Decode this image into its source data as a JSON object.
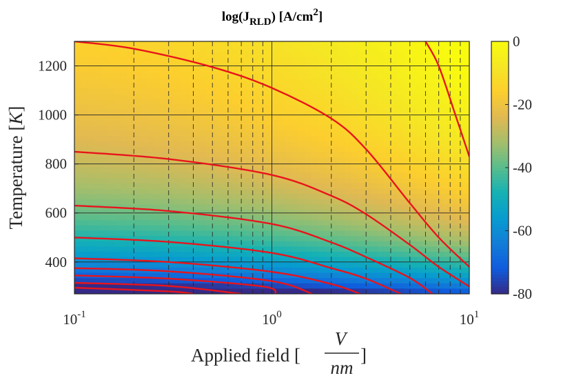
{
  "chart_data": {
    "type": "heatmap",
    "title": {
      "prefix": "log(J",
      "subscript": "RLD",
      "suffix": ") [A/cm",
      "superscript": "2",
      "end": "]"
    },
    "xlabel": {
      "text": "Applied field [",
      "frac_num": "V",
      "frac_den": "nm",
      "end": "]"
    },
    "ylabel": {
      "text": "Temperature [",
      "unit": "K",
      "end": "]"
    },
    "x_scale": "log",
    "xlim": [
      0.1,
      10
    ],
    "ylim": [
      270,
      1300
    ],
    "x_ticks": [
      {
        "value": 0.1,
        "base": "10",
        "exp": "-1"
      },
      {
        "value": 1,
        "base": "10",
        "exp": "0"
      },
      {
        "value": 10,
        "base": "10",
        "exp": "1"
      }
    ],
    "y_ticks": [
      {
        "value": 400,
        "label": "400"
      },
      {
        "value": 600,
        "label": "600"
      },
      {
        "value": 800,
        "label": "800"
      },
      {
        "value": 1000,
        "label": "1000"
      },
      {
        "value": 1200,
        "label": "1200"
      }
    ],
    "colorbar": {
      "range": [
        -80,
        0
      ],
      "ticks": [
        {
          "value": 0,
          "label": "0"
        },
        {
          "value": -20,
          "label": "-20"
        },
        {
          "value": -40,
          "label": "-40"
        },
        {
          "value": -60,
          "label": "-60"
        },
        {
          "value": -80,
          "label": "-80"
        }
      ],
      "colormap": "parula"
    },
    "grid": true,
    "minor_grid_style": "dashed",
    "contour_color": "#e8141c",
    "contour_lines": [
      {
        "points": [
          [
            0.1,
            1300
          ],
          [
            0.2,
            1270
          ],
          [
            0.5,
            1195
          ],
          [
            1,
            1110
          ],
          [
            2,
            985
          ],
          [
            3,
            860
          ],
          [
            5,
            640
          ],
          [
            7,
            500
          ],
          [
            10,
            380
          ]
        ]
      },
      {
        "points": [
          [
            0.1,
            850
          ],
          [
            0.3,
            820
          ],
          [
            1,
            755
          ],
          [
            2,
            670
          ],
          [
            3,
            595
          ],
          [
            5,
            470
          ],
          [
            7,
            380
          ],
          [
            10,
            300
          ]
        ]
      },
      {
        "points": [
          [
            0.1,
            630
          ],
          [
            0.3,
            608
          ],
          [
            1,
            555
          ],
          [
            2,
            480
          ],
          [
            3,
            420
          ],
          [
            5,
            335
          ],
          [
            6.5,
            270
          ]
        ]
      },
      {
        "points": [
          [
            0.1,
            500
          ],
          [
            0.3,
            482
          ],
          [
            1,
            437
          ],
          [
            2,
            375
          ],
          [
            3,
            332
          ],
          [
            4.5,
            270
          ]
        ]
      },
      {
        "points": [
          [
            0.1,
            415
          ],
          [
            0.3,
            400
          ],
          [
            1,
            360
          ],
          [
            2,
            310
          ],
          [
            2.8,
            270
          ]
        ]
      },
      {
        "points": [
          [
            0.1,
            375
          ],
          [
            0.3,
            362
          ],
          [
            1,
            322
          ],
          [
            1.6,
            270
          ]
        ]
      },
      {
        "points": [
          [
            0.1,
            345
          ],
          [
            0.3,
            332
          ],
          [
            0.9,
            300
          ],
          [
            1.05,
            270
          ]
        ]
      },
      {
        "points": [
          [
            0.1,
            315
          ],
          [
            0.3,
            302
          ],
          [
            0.7,
            270
          ]
        ]
      },
      {
        "points": [
          [
            0.1,
            295
          ],
          [
            0.3,
            280
          ],
          [
            0.4,
            270
          ]
        ]
      },
      {
        "points": [
          [
            6,
            1300
          ],
          [
            7,
            1200
          ],
          [
            8.5,
            1000
          ],
          [
            10,
            830
          ]
        ]
      }
    ]
  }
}
